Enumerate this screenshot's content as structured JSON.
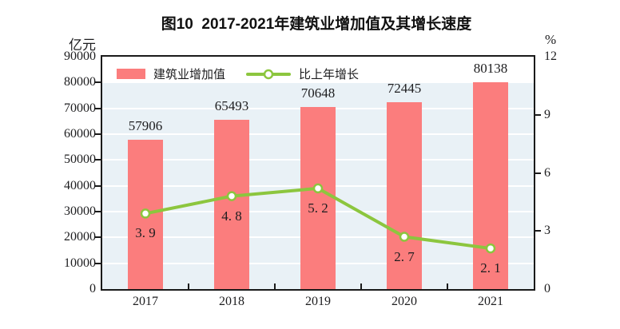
{
  "figure": {
    "title": "图10  2017-2021年建筑业增加值及其增长速度"
  },
  "chart_data": {
    "type": "bar+line",
    "title": "图10  2017-2021年建筑业增加值及其增长速度",
    "categories": [
      "2017",
      "2018",
      "2019",
      "2020",
      "2021"
    ],
    "series": [
      {
        "name": "建筑业增加值",
        "type": "bar",
        "axis": "left",
        "unit": "亿元",
        "values": [
          57906,
          65493,
          70648,
          72445,
          80138
        ],
        "value_labels": [
          "57906",
          "65493",
          "70648",
          "72445",
          "80138"
        ],
        "color": "#fb7d7d"
      },
      {
        "name": "比上年增长",
        "type": "line",
        "axis": "right",
        "unit": "%",
        "values": [
          3.9,
          4.8,
          5.2,
          2.7,
          2.1
        ],
        "value_labels": [
          "3. 9",
          "4. 8",
          "5. 2",
          "2. 7",
          "2. 1"
        ],
        "color": "#8cc63e",
        "marker": "circle-white-fill"
      }
    ],
    "left_axis": {
      "unit": "亿元",
      "min": 0,
      "max": 90000,
      "tick_step": 10000,
      "tick_labels": [
        "0",
        "10000",
        "20000",
        "30000",
        "40000",
        "50000",
        "60000",
        "70000",
        "80000",
        "90000"
      ]
    },
    "right_axis": {
      "unit": "%",
      "min": 0,
      "max": 12,
      "tick_step": 3,
      "tick_labels": [
        "0",
        "3",
        "6",
        "9",
        "12"
      ]
    },
    "grid": true,
    "legend_position": "top-left-inside",
    "colors": {
      "plot_background": "#e9f1f6",
      "plot_top_band": "#ffffff",
      "gridline": "#ffffff",
      "axis_border": "#1a1a1a",
      "bar": "#fb7d7d",
      "line": "#8cc63e",
      "marker_fill": "#ffffff",
      "text": "#1d1d1f",
      "title": "#111111"
    }
  }
}
